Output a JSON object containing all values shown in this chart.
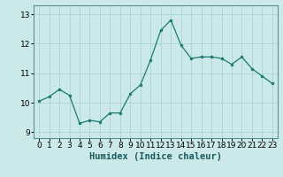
{
  "x": [
    0,
    1,
    2,
    3,
    4,
    5,
    6,
    7,
    8,
    9,
    10,
    11,
    12,
    13,
    14,
    15,
    16,
    17,
    18,
    19,
    20,
    21,
    22,
    23
  ],
  "y": [
    10.05,
    10.2,
    10.45,
    10.25,
    9.3,
    9.4,
    9.35,
    9.65,
    9.65,
    10.3,
    10.6,
    11.45,
    12.45,
    12.8,
    11.95,
    11.5,
    11.55,
    11.55,
    11.5,
    11.3,
    11.55,
    11.15,
    10.9,
    10.65
  ],
  "line_color": "#1a7a6e",
  "marker": "o",
  "marker_size": 2,
  "bg_color": "#cce9e9",
  "grid_color": "#aad4d4",
  "xlabel": "Humidex (Indice chaleur)",
  "xlim": [
    -0.5,
    23.5
  ],
  "ylim": [
    8.8,
    13.3
  ],
  "yticks": [
    9,
    10,
    11,
    12,
    13
  ],
  "xticks": [
    0,
    1,
    2,
    3,
    4,
    5,
    6,
    7,
    8,
    9,
    10,
    11,
    12,
    13,
    14,
    15,
    16,
    17,
    18,
    19,
    20,
    21,
    22,
    23
  ],
  "tick_labelsize": 6.5,
  "xlabel_fontsize": 7.5,
  "spine_color": "#5a9090"
}
